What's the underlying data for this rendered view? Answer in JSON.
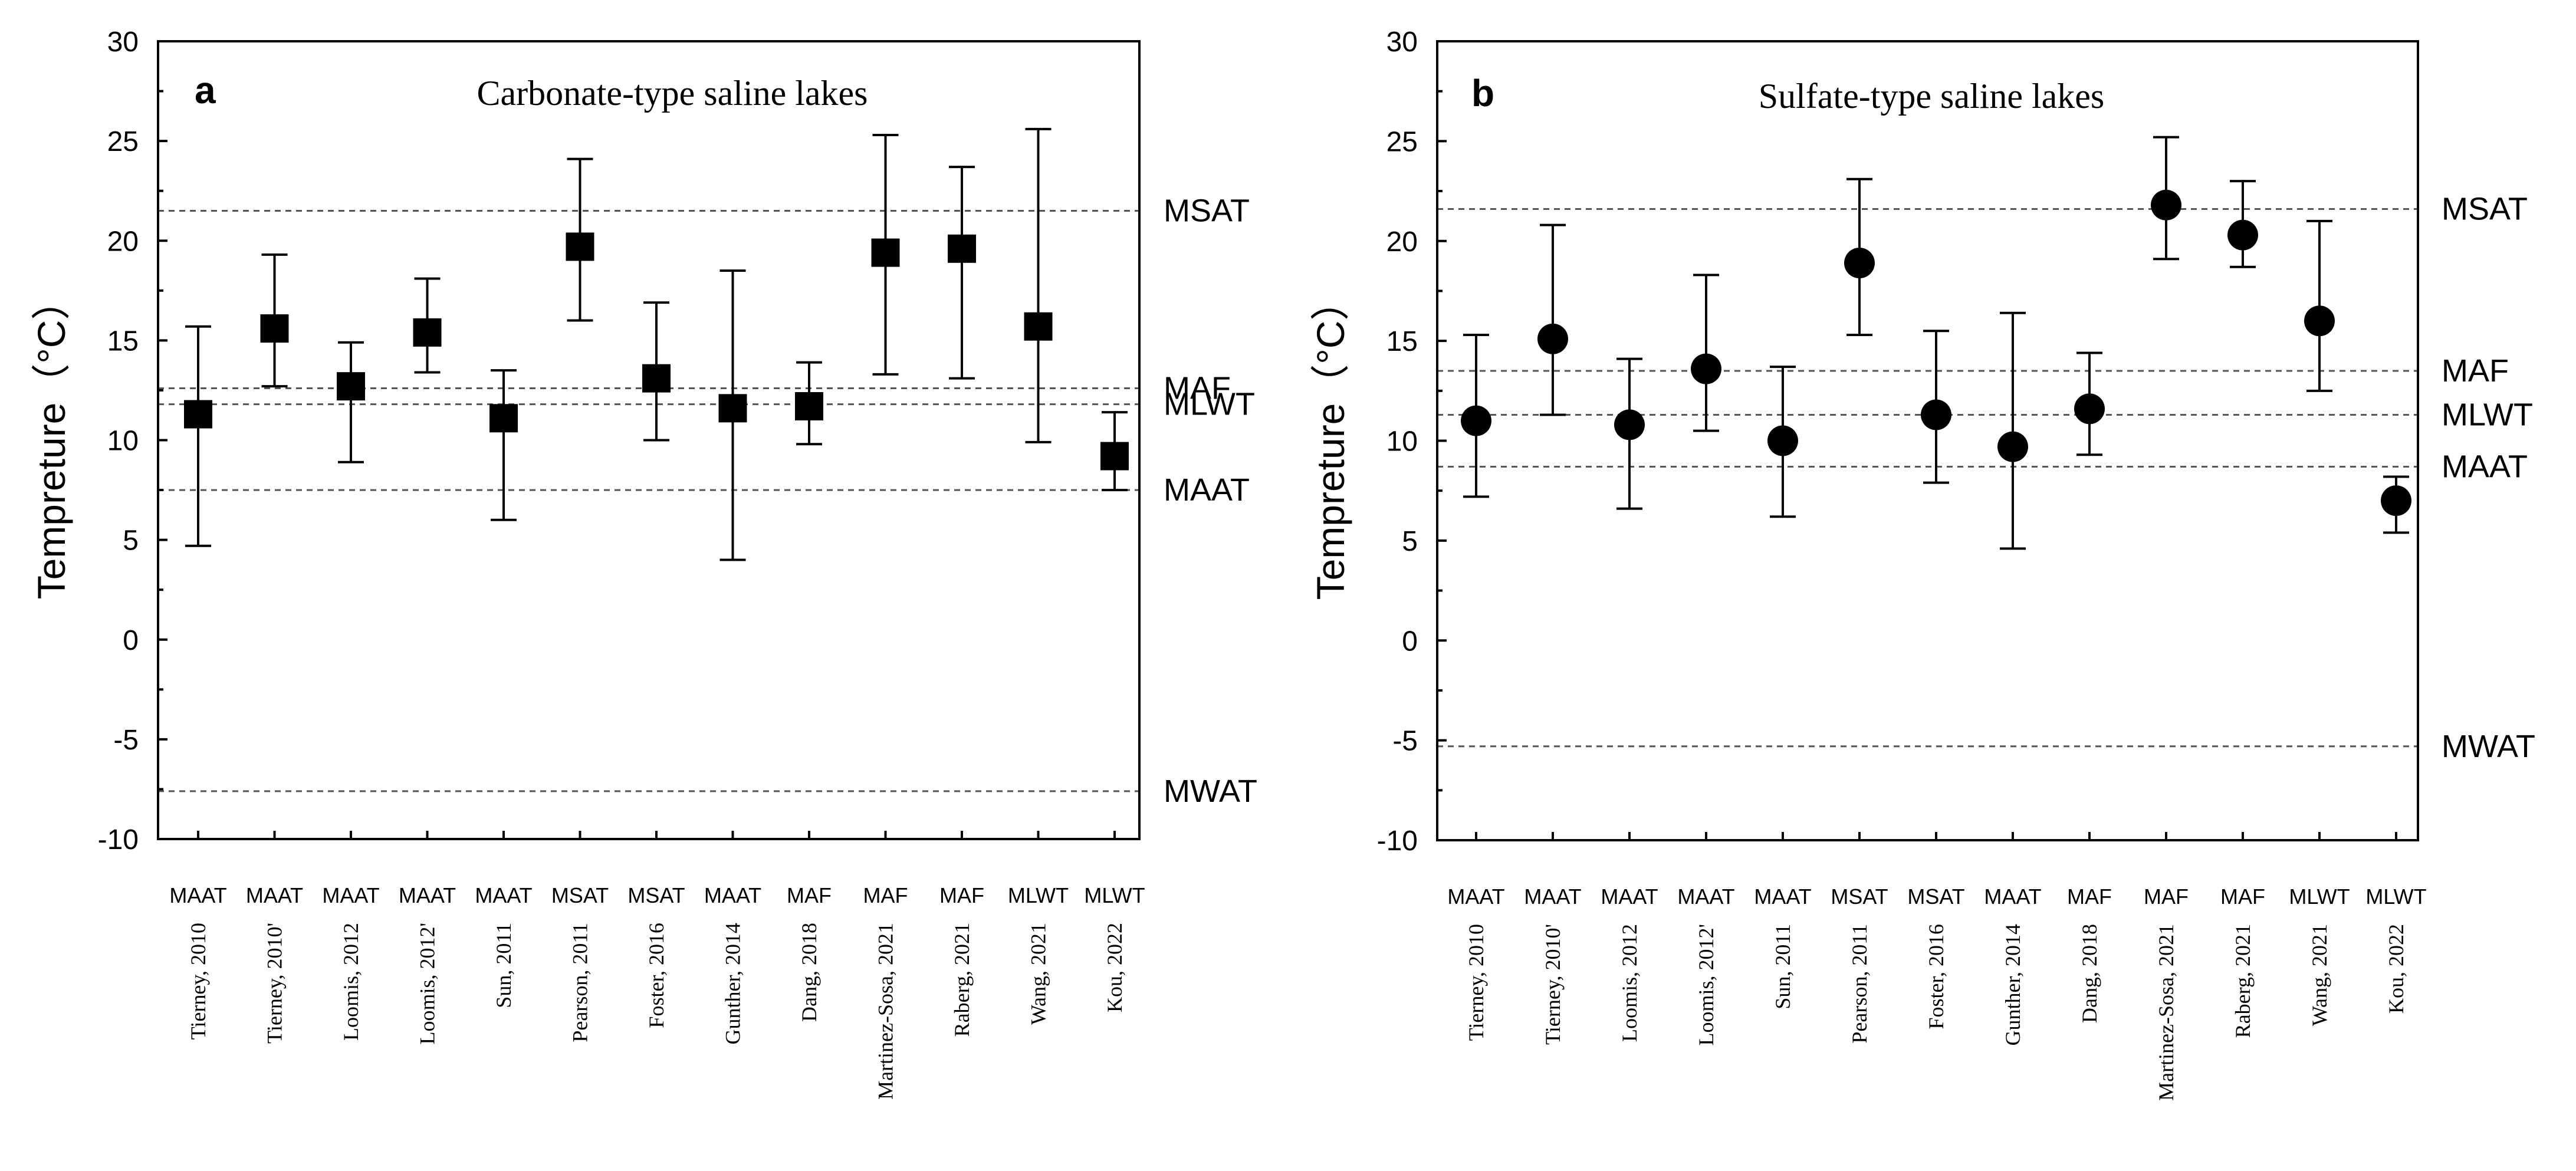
{
  "chart_data": [
    {
      "id": "a",
      "type": "scatter",
      "panel_letter": "a",
      "title": "Carbonate-type saline lakes",
      "ylabel": "Tempreture（°C）",
      "ylim": [
        -10,
        30
      ],
      "yticks": [
        "30",
        "25",
        "20",
        "15",
        "10",
        "5",
        "0",
        "-5",
        "-10"
      ],
      "marker": "square",
      "categories": [
        "Tierney, 2010",
        "Tierney, 2010'",
        "Loomis, 2012",
        "Loomis, 2012'",
        "Sun, 2011",
        "Pearson, 2011",
        "Foster, 2016",
        "Gunther, 2014",
        "Dang, 2018",
        "Martinez-Sosa, 2021",
        "Raberg, 2021",
        "Wang, 2021",
        "Kou, 2022"
      ],
      "proxies": [
        "MAAT",
        "MAAT",
        "MAAT",
        "MAAT",
        "MAAT",
        "MSAT",
        "MSAT",
        "MAAT",
        "MAF",
        "MAF",
        "MAF",
        "MLWT",
        "MLWT"
      ],
      "values": [
        11.3,
        15.6,
        12.7,
        15.4,
        11.1,
        19.7,
        13.1,
        11.6,
        11.7,
        19.4,
        19.6,
        15.7,
        9.2
      ],
      "upper": [
        15.7,
        19.3,
        14.9,
        18.1,
        13.5,
        24.1,
        16.9,
        18.5,
        13.9,
        25.3,
        23.7,
        25.6,
        11.4
      ],
      "lower": [
        4.7,
        12.7,
        8.9,
        13.4,
        6.0,
        16.0,
        10.0,
        4.0,
        9.8,
        13.3,
        13.1,
        9.9,
        7.5
      ],
      "reference_lines": [
        {
          "label": "MSAT",
          "value": 21.5
        },
        {
          "label": "MAF",
          "value": 12.6
        },
        {
          "label": "MLWT",
          "value": 11.8
        },
        {
          "label": "MAAT",
          "value": 7.5
        },
        {
          "label": "MWAT",
          "value": -7.6
        }
      ]
    },
    {
      "id": "b",
      "type": "scatter",
      "panel_letter": "b",
      "title": "Sulfate-type saline lakes",
      "ylabel": "Tempreture（°C）",
      "ylim": [
        -10,
        30
      ],
      "yticks": [
        "30",
        "25",
        "20",
        "15",
        "10",
        "5",
        "0",
        "-5",
        "-10"
      ],
      "marker": "circle",
      "categories": [
        "Tierney, 2010",
        "Tierney, 2010'",
        "Loomis, 2012",
        "Loomis, 2012'",
        "Sun, 2011",
        "Pearson, 2011",
        "Foster, 2016",
        "Gunther, 2014",
        "Dang, 2018",
        "Martinez-Sosa, 2021",
        "Raberg, 2021",
        "Wang, 2021",
        "Kou, 2022"
      ],
      "proxies": [
        "MAAT",
        "MAAT",
        "MAAT",
        "MAAT",
        "MAAT",
        "MSAT",
        "MSAT",
        "MAAT",
        "MAF",
        "MAF",
        "MAF",
        "MLWT",
        "MLWT"
      ],
      "values": [
        11.0,
        15.1,
        10.8,
        13.6,
        10.0,
        18.9,
        11.3,
        9.7,
        11.6,
        21.8,
        20.3,
        16.0,
        7.0
      ],
      "upper": [
        15.3,
        20.8,
        14.1,
        18.3,
        13.7,
        23.1,
        15.5,
        16.4,
        14.4,
        25.2,
        23.0,
        21.0,
        8.2
      ],
      "lower": [
        7.2,
        11.3,
        6.6,
        10.5,
        6.2,
        15.3,
        7.9,
        4.6,
        9.3,
        19.1,
        18.7,
        12.5,
        5.4
      ],
      "reference_lines": [
        {
          "label": "MSAT",
          "value": 21.6
        },
        {
          "label": "MAF",
          "value": 13.5
        },
        {
          "label": "MLWT",
          "value": 11.3
        },
        {
          "label": "MAAT",
          "value": 8.7
        },
        {
          "label": "MWAT",
          "value": -5.3
        }
      ]
    }
  ]
}
